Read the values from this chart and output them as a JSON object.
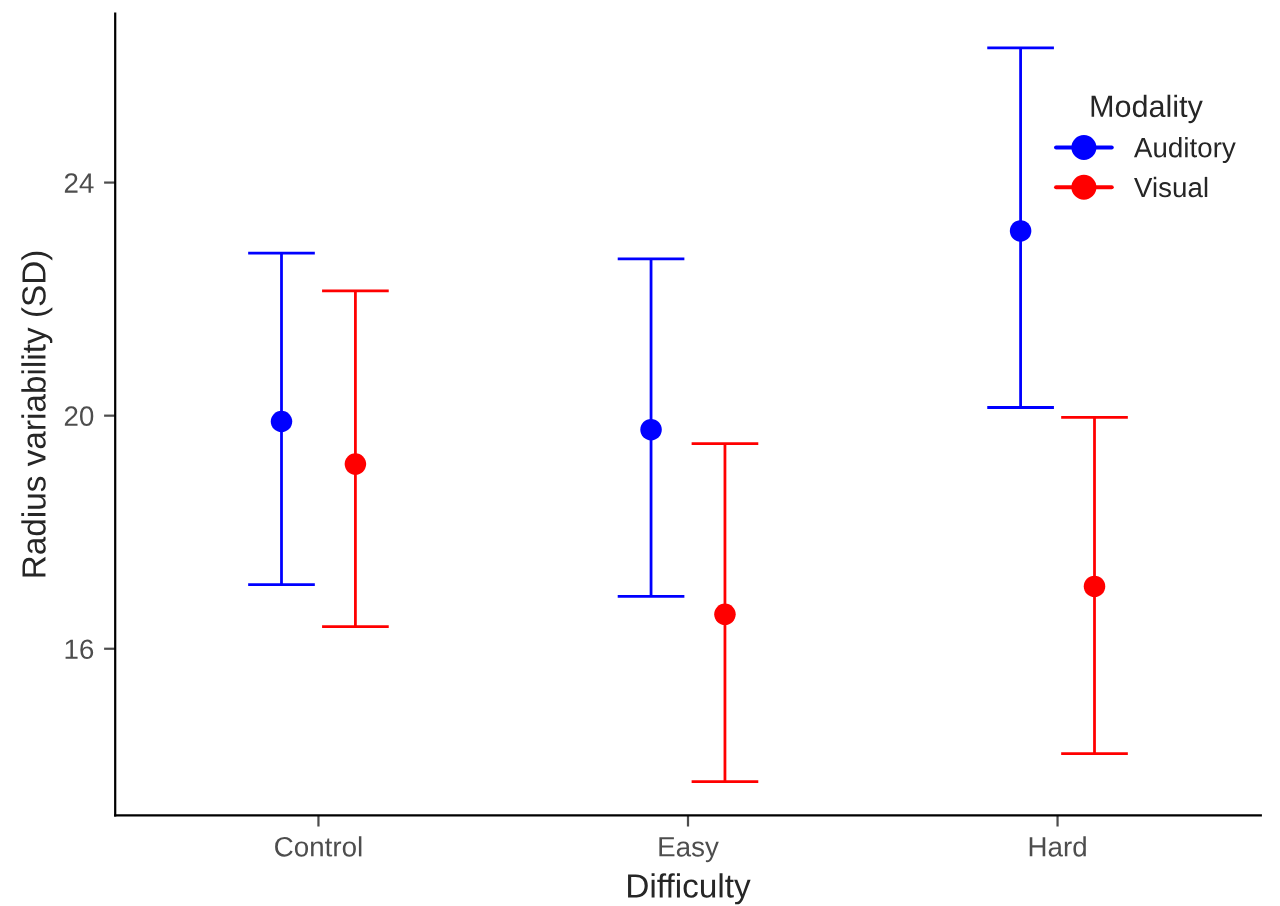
{
  "chart_data": {
    "type": "scatter",
    "xlabel": "Difficulty",
    "ylabel": "Radius variability (SD)",
    "legend_title": "Modality",
    "categories": [
      "Control",
      "Easy",
      "Hard"
    ],
    "series": [
      {
        "name": "Auditory",
        "color": "#0000ff",
        "values": [
          19.9,
          19.76,
          23.17
        ],
        "errors": [
          [
            17.1,
            22.79
          ],
          [
            16.9,
            22.69
          ],
          [
            20.14,
            26.31
          ]
        ]
      },
      {
        "name": "Visual",
        "color": "#ff0000",
        "values": [
          19.17,
          16.59,
          17.07
        ],
        "errors": [
          [
            16.38,
            22.14
          ],
          [
            13.72,
            19.52
          ],
          [
            14.2,
            19.97
          ]
        ]
      }
    ],
    "ylim": [
      13.14,
      26.9
    ],
    "yticks": [
      16,
      20,
      24
    ],
    "grid": false,
    "legend": "top right",
    "marker": "circle"
  }
}
